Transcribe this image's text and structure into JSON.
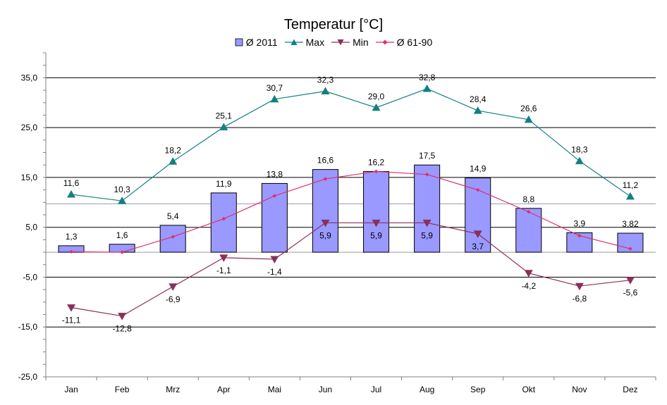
{
  "chart_data": {
    "type": "bar",
    "title": "Temperatur [°C]",
    "categories": [
      "Jan",
      "Feb",
      "Mrz",
      "Apr",
      "Mai",
      "Jun",
      "Jul",
      "Aug",
      "Sep",
      "Okt",
      "Nov",
      "Dez"
    ],
    "yticks": [
      "35,0",
      "25,0",
      "15,0",
      "5,0",
      "-5,0",
      "-15,0",
      "-25,0"
    ],
    "ylim": [
      -25,
      40
    ],
    "grid": true,
    "legend_position": "top",
    "series": [
      {
        "name": "Ø 2011",
        "kind": "bar",
        "color": "#9999ff",
        "values": [
          1.3,
          1.6,
          5.4,
          11.9,
          13.8,
          16.6,
          16.2,
          17.5,
          14.9,
          8.8,
          3.9,
          3.82
        ],
        "labels": [
          "1,3",
          "1,6",
          "5,4",
          "11,9",
          "13,8",
          "16,6",
          "16,2",
          "17,5",
          "14,9",
          "8,8",
          "3,9",
          "3,82"
        ]
      },
      {
        "name": "Max",
        "kind": "line",
        "marker": "triangle-up",
        "color": "#128080",
        "values": [
          11.6,
          10.3,
          18.2,
          25.1,
          30.7,
          32.3,
          29.0,
          32.8,
          28.4,
          26.6,
          18.3,
          11.2
        ],
        "labels": [
          "11,6",
          "10,3",
          "18,2",
          "25,1",
          "30,7",
          "32,3",
          "29,0",
          "32,8",
          "28,4",
          "26,6",
          "18,3",
          "11,2"
        ]
      },
      {
        "name": "Min",
        "kind": "line",
        "marker": "triangle-down",
        "color": "#8a2f5a",
        "values": [
          -11.1,
          -12.8,
          -6.9,
          -1.1,
          -1.4,
          5.9,
          5.9,
          5.9,
          3.7,
          -4.2,
          -6.8,
          -5.6
        ],
        "labels": [
          "-11,1",
          "-12,8",
          "-6,9",
          "-1,1",
          "-1,4",
          "5,9",
          "5,9",
          "5,9",
          "3,7",
          "-4,2",
          "-6,8",
          "-5,6"
        ]
      },
      {
        "name": "Ø 61-90",
        "kind": "line",
        "marker": "diamond",
        "color": "#e0306a",
        "values": [
          0.1,
          0.0,
          3.1,
          6.7,
          11.3,
          14.7,
          16.2,
          15.6,
          12.5,
          8.1,
          3.3,
          0.7
        ]
      }
    ],
    "reference_line": {
      "value": 9.7,
      "color": "#9999bb"
    }
  }
}
